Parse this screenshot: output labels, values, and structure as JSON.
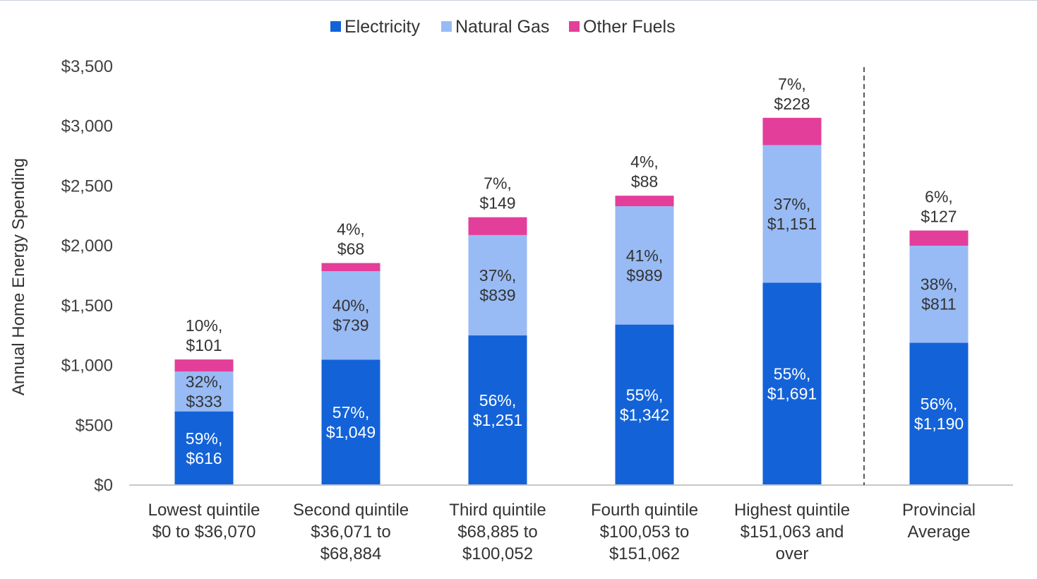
{
  "chart_data": {
    "type": "bar",
    "stacked": true,
    "categories": [
      [
        "Lowest quintile",
        "$0 to $36,070"
      ],
      [
        "Second quintile",
        "$36,071 to",
        "$68,884"
      ],
      [
        "Third quintile",
        "$68,885 to",
        "$100,052"
      ],
      [
        "Fourth quintile",
        "$100,053 to",
        "$151,062"
      ],
      [
        "Highest quintile",
        "$151,063 and",
        "over"
      ],
      [
        "Provincial",
        "Average"
      ]
    ],
    "series": [
      {
        "name": "Electricity",
        "color": "#1362d8",
        "label_color": "#ffffff",
        "values": [
          616,
          1049,
          1251,
          1342,
          1691,
          1190
        ],
        "labels": [
          [
            "59%,",
            "$616"
          ],
          [
            "57%,",
            "$1,049"
          ],
          [
            "56%,",
            "$1,251"
          ],
          [
            "55%,",
            "$1,342"
          ],
          [
            "55%,",
            "$1,691"
          ],
          [
            "56%,",
            "$1,190"
          ]
        ]
      },
      {
        "name": "Natural Gas",
        "color": "#98bbf5",
        "label_color": "#333333",
        "values": [
          333,
          739,
          839,
          989,
          1151,
          811
        ],
        "labels": [
          [
            "32%,",
            "$333"
          ],
          [
            "40%,",
            "$739"
          ],
          [
            "37%,",
            "$839"
          ],
          [
            "41%,",
            "$989"
          ],
          [
            "37%,",
            "$1,151"
          ],
          [
            "38%,",
            "$811"
          ]
        ]
      },
      {
        "name": "Other Fuels",
        "color": "#e33e9a",
        "label_color": "#333333",
        "values": [
          101,
          68,
          149,
          88,
          228,
          127
        ],
        "labels": [
          [
            "10%,",
            "$101"
          ],
          [
            "4%,",
            "$68"
          ],
          [
            "7%,",
            "$149"
          ],
          [
            "4%,",
            "$88"
          ],
          [
            "7%,",
            "$228"
          ],
          [
            "6%,",
            "$127"
          ]
        ]
      }
    ],
    "ylabel": "Annual Home Energy Spending",
    "ylim": [
      0,
      3500
    ],
    "yticks": [
      0,
      500,
      1000,
      1500,
      2000,
      2500,
      3000,
      3500
    ],
    "ytick_labels": [
      "$0",
      "$500",
      "$1,000",
      "$1,500",
      "$2,000",
      "$2,500",
      "$3,000",
      "$3,500"
    ],
    "legend_position": "top-center",
    "grid": false,
    "separator_before_category": 5
  }
}
